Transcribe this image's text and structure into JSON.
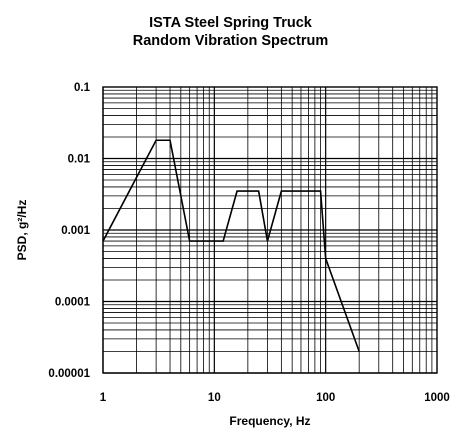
{
  "chart_data": {
    "type": "line",
    "title": "ISTA Steel Spring Truck",
    "subtitle": "Random Vibration Spectrum",
    "xlabel": "Frequency, Hz",
    "ylabel": "PSD, g²/Hz",
    "x_scale": "log",
    "y_scale": "log",
    "xlim": [
      1,
      1000
    ],
    "ylim": [
      1e-05,
      0.1
    ],
    "x_ticks": [
      {
        "value": 1,
        "label": "1"
      },
      {
        "value": 10,
        "label": "10"
      },
      {
        "value": 100,
        "label": "100"
      },
      {
        "value": 1000,
        "label": "1000"
      }
    ],
    "y_ticks": [
      {
        "value": 0.1,
        "label": "0.1"
      },
      {
        "value": 0.01,
        "label": "0.01"
      },
      {
        "value": 0.001,
        "label": "0.001"
      },
      {
        "value": 0.0001,
        "label": "0.0001"
      },
      {
        "value": 1e-05,
        "label": "0.00001"
      }
    ],
    "grid": true,
    "series": [
      {
        "color": "#000000",
        "x": [
          1,
          3,
          4,
          6,
          12,
          16,
          25,
          30,
          40,
          70,
          90,
          100,
          200
        ],
        "y": [
          0.0007,
          0.018,
          0.018,
          0.0007,
          0.0007,
          0.0035,
          0.0035,
          0.0007,
          0.0035,
          0.0035,
          0.0035,
          0.0004,
          2e-05
        ]
      }
    ]
  }
}
